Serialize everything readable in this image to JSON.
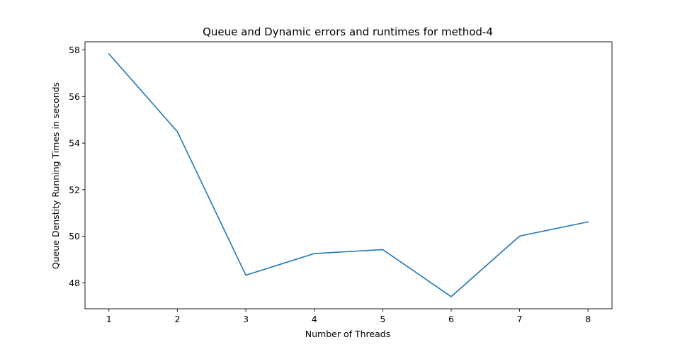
{
  "chart_data": {
    "type": "line",
    "title": "Queue and Dynamic errors and runtimes for method-4",
    "xlabel": "Number of Threads",
    "ylabel": "Queue Denstity Running Times in seconds",
    "x": [
      1,
      2,
      3,
      4,
      5,
      6,
      7,
      8
    ],
    "series": [
      {
        "name": "",
        "values": [
          57.83,
          54.49,
          48.33,
          49.26,
          49.43,
          47.41,
          50.01,
          50.62
        ],
        "color": "#1f77b4"
      }
    ],
    "xticks": [
      "1",
      "2",
      "3",
      "4",
      "5",
      "6",
      "7",
      "8"
    ],
    "yticks": [
      "48",
      "50",
      "52",
      "54",
      "56",
      "58"
    ],
    "xlim": [
      0.65,
      8.35
    ],
    "ylim": [
      46.89,
      58.35
    ],
    "grid": false,
    "legend": "none"
  }
}
